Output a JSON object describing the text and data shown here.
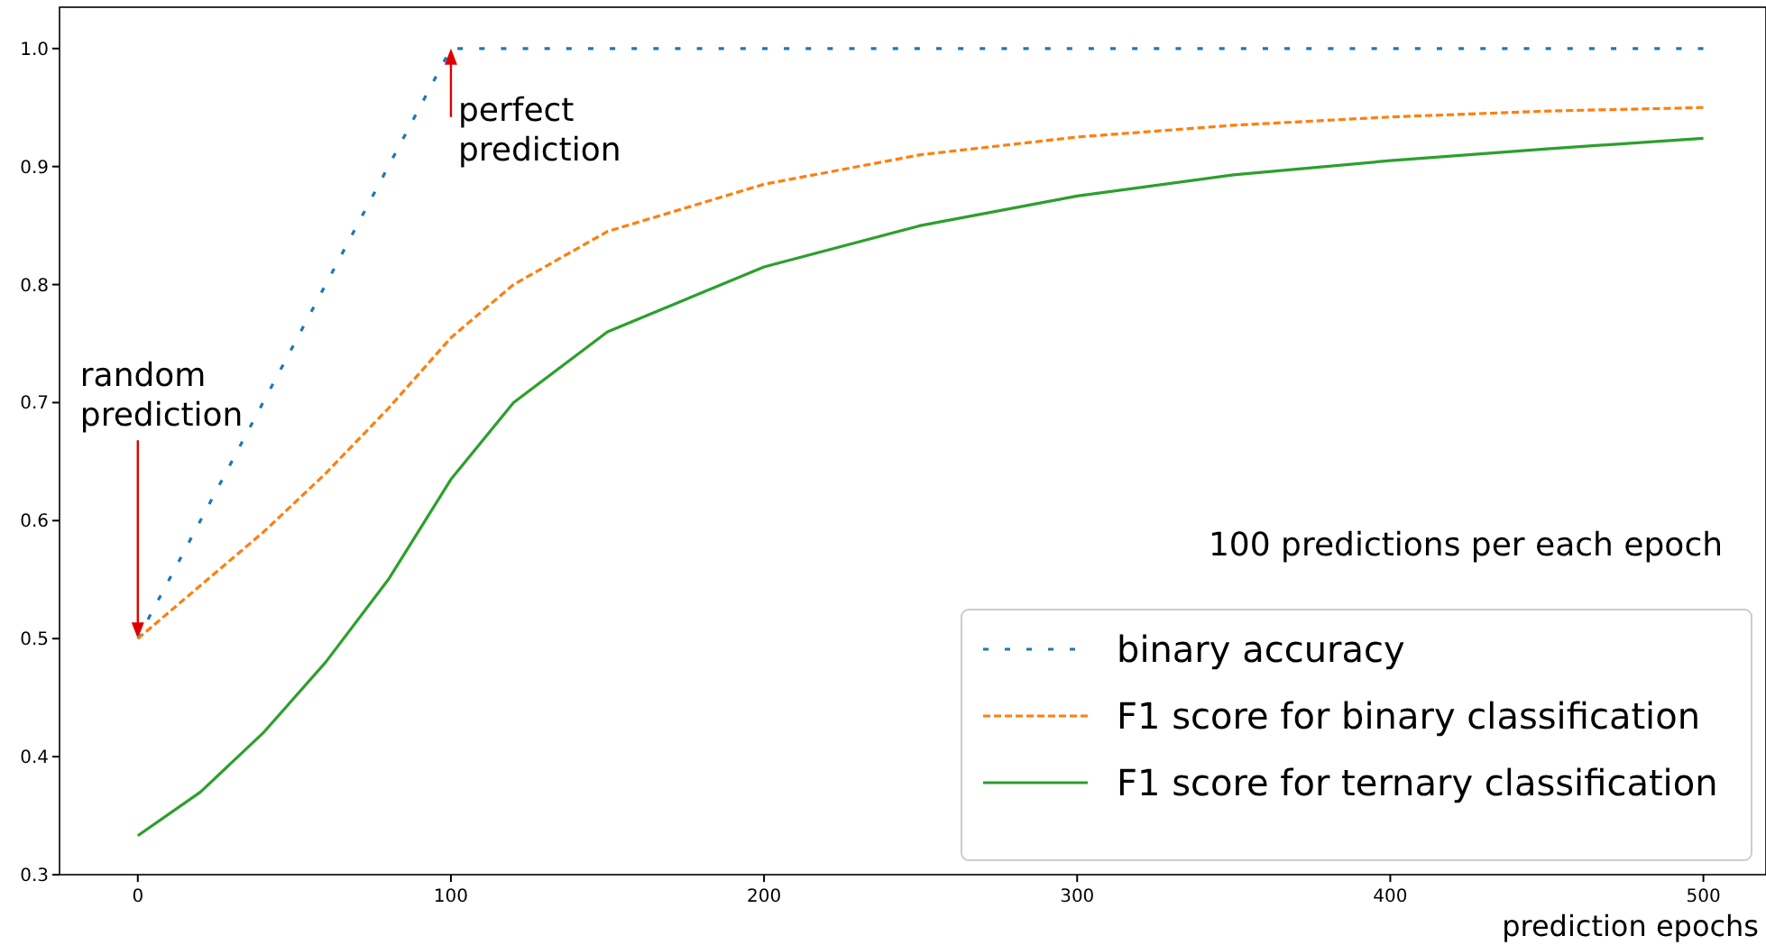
{
  "chart_data": {
    "type": "line",
    "xlabel": "prediction epochs",
    "xlim": [
      -25,
      520
    ],
    "xticks": [
      0,
      100,
      200,
      300,
      400,
      500
    ],
    "ylim": [
      0.3,
      1.035
    ],
    "yticks": [
      0.3,
      0.4,
      0.5,
      0.6,
      0.7,
      0.8,
      0.9,
      {
        "value": 1,
        "label": "1.0"
      }
    ],
    "grid": false,
    "legend": "bottom right",
    "series": [
      {
        "name": "binary accuracy",
        "color": "#1f77b4",
        "line_style": "dotted",
        "x": [
          0,
          100,
          500
        ],
        "values": [
          0.5,
          1.0,
          1.0
        ]
      },
      {
        "name": "F1 score for binary classification",
        "color": "#ff7f0e",
        "line_style": "dashed",
        "x": [
          0,
          20,
          40,
          60,
          80,
          100,
          120,
          150,
          200,
          250,
          300,
          350,
          400,
          450,
          500
        ],
        "values": [
          0.5,
          0.545,
          0.59,
          0.64,
          0.695,
          0.755,
          0.8,
          0.845,
          0.885,
          0.91,
          0.925,
          0.935,
          0.942,
          0.947,
          0.95
        ]
      },
      {
        "name": "F1 score for ternary classification",
        "color": "#2ca02c",
        "line_style": "solid",
        "x": [
          0,
          20,
          40,
          60,
          80,
          100,
          120,
          150,
          200,
          250,
          300,
          350,
          400,
          450,
          500
        ],
        "values": [
          0.333,
          0.37,
          0.42,
          0.48,
          0.55,
          0.635,
          0.7,
          0.76,
          0.815,
          0.85,
          0.875,
          0.893,
          0.905,
          0.915,
          0.924
        ]
      }
    ],
    "annotations": [
      {
        "text": "random prediction",
        "x": 0,
        "y": 0.5
      },
      {
        "text": "perfect prediction",
        "x": 100,
        "y": 1.0
      },
      "100 predictions per each epoch"
    ]
  }
}
